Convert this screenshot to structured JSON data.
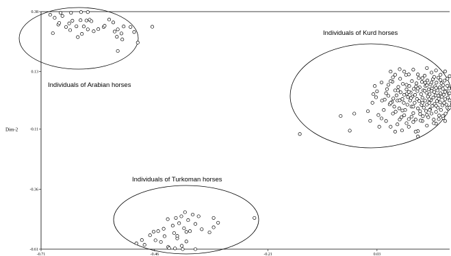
{
  "chart_data": {
    "type": "scatter",
    "title": "",
    "xlabel": "",
    "ylabel": "Dim-2",
    "xlim": [
      -0.71,
      0.19
    ],
    "ylim": [
      -0.61,
      0.38
    ],
    "x_ticks": [
      "-0.71",
      "-0.46",
      "-0.21",
      "0.03"
    ],
    "y_ticks": [
      "0.38",
      "0.13",
      "-0.11",
      "-0.36",
      "-0.61"
    ],
    "point_color": "#000000",
    "grid": false,
    "groups": [
      {
        "label": "Individuals of Arabian horses",
        "points": [
          [
            -0.69,
            0.367
          ],
          [
            -0.68,
            0.354
          ],
          [
            -0.672,
            0.326
          ],
          [
            -0.67,
            0.333
          ],
          [
            -0.667,
            0.375
          ],
          [
            -0.663,
            0.362
          ],
          [
            -0.655,
            0.316
          ],
          [
            -0.648,
            0.331
          ],
          [
            -0.646,
            0.303
          ],
          [
            -0.641,
            0.342
          ],
          [
            -0.632,
            0.319
          ],
          [
            -0.629,
            0.274
          ],
          [
            -0.623,
            0.344
          ],
          [
            -0.62,
            0.287
          ],
          [
            -0.616,
            0.318
          ],
          [
            -0.61,
            0.343
          ],
          [
            -0.607,
            0.306
          ],
          [
            -0.603,
            0.346
          ],
          [
            -0.599,
            0.34
          ],
          [
            -0.584,
            0.307
          ],
          [
            -0.572,
            0.316
          ],
          [
            -0.57,
            0.321
          ],
          [
            -0.56,
            0.347
          ],
          [
            -0.551,
            0.335
          ],
          [
            -0.548,
            0.297
          ],
          [
            -0.543,
            0.275
          ],
          [
            -0.541,
            0.306
          ],
          [
            -0.533,
            0.289
          ],
          [
            -0.531,
            0.264
          ],
          [
            -0.513,
            0.316
          ],
          [
            -0.505,
            0.295
          ],
          [
            -0.497,
            0.251
          ],
          [
            -0.465,
            0.317
          ],
          [
            -0.644,
            0.375
          ],
          [
            -0.622,
            0.378
          ],
          [
            -0.607,
            0.378
          ],
          [
            -0.594,
            0.298
          ],
          [
            -0.541,
            0.216
          ],
          [
            -0.528,
            0.318
          ],
          [
            -0.684,
            0.29
          ]
        ]
      },
      {
        "label": "Individuals of Kurd horses",
        "points": [
          [
            -0.03,
            -0.116
          ],
          [
            -0.02,
            -0.045
          ],
          [
            0.015,
            -0.075
          ],
          [
            0.02,
            0.0
          ],
          [
            0.022,
            0.036
          ],
          [
            0.028,
            0.023
          ],
          [
            0.033,
            -0.051
          ],
          [
            0.041,
            0.009
          ],
          [
            0.047,
            0.013
          ],
          [
            0.05,
            -0.076
          ],
          [
            0.052,
            0.057
          ],
          [
            0.055,
            0.029
          ],
          [
            0.058,
            -0.007
          ],
          [
            0.063,
            0.003
          ],
          [
            0.064,
            0.088
          ],
          [
            0.066,
            0.018
          ],
          [
            0.068,
            -0.016
          ],
          [
            0.07,
            0.052
          ],
          [
            0.071,
            -0.037
          ],
          [
            0.073,
            0.031
          ],
          [
            0.075,
            0.009
          ],
          [
            0.077,
            0.066
          ],
          [
            0.079,
            -0.023
          ],
          [
            0.081,
            0.1
          ],
          [
            0.082,
            0.044
          ],
          [
            0.084,
            -0.06
          ],
          [
            0.086,
            0.016
          ],
          [
            0.087,
            0.079
          ],
          [
            0.089,
            0.0
          ],
          [
            0.09,
            0.033
          ],
          [
            0.092,
            -0.03
          ],
          [
            0.094,
            0.116
          ],
          [
            0.095,
            0.056
          ],
          [
            0.097,
            -0.008
          ],
          [
            0.098,
            0.024
          ],
          [
            0.1,
            -0.068
          ],
          [
            0.101,
            0.07
          ],
          [
            0.103,
            0.009
          ],
          [
            0.104,
            0.043
          ],
          [
            0.106,
            -0.016
          ],
          [
            0.107,
            0.09
          ],
          [
            0.108,
            0.026
          ],
          [
            0.11,
            -0.043
          ],
          [
            0.111,
            0.058
          ],
          [
            0.113,
            0.0
          ],
          [
            0.114,
            0.033
          ],
          [
            0.115,
            -0.07
          ],
          [
            0.117,
            0.081
          ],
          [
            0.118,
            0.016
          ],
          [
            0.119,
            0.049
          ],
          [
            0.12,
            -0.023
          ],
          [
            0.122,
            0.103
          ],
          [
            0.123,
            0.007
          ],
          [
            0.124,
            0.065
          ],
          [
            0.125,
            -0.047
          ],
          [
            0.127,
            0.036
          ],
          [
            0.128,
            -0.009
          ],
          [
            0.129,
            0.087
          ],
          [
            0.13,
            0.021
          ],
          [
            0.131,
            -0.056
          ],
          [
            0.132,
            0.052
          ],
          [
            0.133,
            -0.02
          ],
          [
            0.135,
            0.113
          ],
          [
            0.136,
            0.009
          ],
          [
            0.137,
            0.07
          ],
          [
            0.138,
            -0.034
          ],
          [
            0.139,
            0.042
          ],
          [
            0.14,
            -0.008
          ],
          [
            0.141,
            0.093
          ],
          [
            0.142,
            0.026
          ],
          [
            0.143,
            -0.06
          ],
          [
            0.144,
            0.056
          ],
          [
            0.145,
            0.0
          ],
          [
            0.146,
            0.035
          ],
          [
            0.147,
            -0.027
          ],
          [
            0.148,
            0.077
          ],
          [
            0.149,
            0.011
          ],
          [
            0.15,
            -0.045
          ],
          [
            0.151,
            0.06
          ],
          [
            0.152,
            -0.013
          ],
          [
            0.153,
            0.098
          ],
          [
            0.154,
            0.022
          ],
          [
            0.155,
            -0.07
          ],
          [
            0.156,
            0.045
          ],
          [
            0.157,
            -0.005
          ],
          [
            0.158,
            0.069
          ],
          [
            0.159,
            0.031
          ],
          [
            0.16,
            -0.038
          ],
          [
            0.161,
            0.084
          ],
          [
            0.162,
            0.007
          ],
          [
            0.163,
            0.052
          ],
          [
            0.164,
            -0.02
          ],
          [
            0.165,
            0.105
          ],
          [
            0.166,
            0.017
          ],
          [
            0.167,
            -0.053
          ],
          [
            0.168,
            0.064
          ],
          [
            0.169,
            0.002
          ],
          [
            0.17,
            0.04
          ],
          [
            0.171,
            -0.03
          ],
          [
            0.172,
            0.081
          ],
          [
            0.173,
            0.025
          ],
          [
            0.174,
            -0.011
          ],
          [
            0.175,
            0.058
          ],
          [
            0.176,
            -0.063
          ],
          [
            0.177,
            0.034
          ],
          [
            0.178,
            0.0
          ],
          [
            0.179,
            0.092
          ],
          [
            0.18,
            0.015
          ],
          [
            0.181,
            -0.045
          ],
          [
            0.182,
            0.049
          ],
          [
            0.183,
            -0.008
          ],
          [
            0.185,
            0.071
          ],
          [
            0.186,
            0.022
          ],
          [
            0.187,
            -0.026
          ],
          [
            0.188,
            0.038
          ],
          [
            0.189,
            0.06
          ],
          [
            0.19,
            0.01
          ],
          [
            0.06,
            0.09
          ],
          [
            0.07,
            0.117
          ],
          [
            0.09,
            0.13
          ],
          [
            0.11,
            0.138
          ],
          [
            0.12,
            0.118
          ],
          [
            0.14,
            0.145
          ],
          [
            0.15,
            0.126
          ],
          [
            0.16,
            0.135
          ],
          [
            0.17,
            0.117
          ],
          [
            0.18,
            0.131
          ],
          [
            0.19,
            0.111
          ],
          [
            0.1,
            -0.1
          ],
          [
            0.12,
            -0.118
          ],
          [
            0.14,
            -0.095
          ],
          [
            0.16,
            -0.087
          ],
          [
            0.18,
            -0.076
          ],
          [
            0.085,
            -0.115
          ],
          [
            0.11,
            -0.08
          ],
          [
            0.035,
            -0.1
          ],
          [
            0.025,
            0.07
          ],
          [
            0.04,
            0.085
          ],
          [
            0.065,
            0.106
          ],
          [
            0.03,
            0.048
          ],
          [
            0.045,
            -0.03
          ],
          [
            0.06,
            -0.1
          ],
          [
            0.075,
            -0.09
          ],
          [
            0.095,
            -0.085
          ],
          [
            0.115,
            -0.12
          ],
          [
            0.13,
            -0.076
          ],
          [
            0.155,
            -0.085
          ],
          [
            0.175,
            -0.055
          ],
          [
            0.12,
            -0.14
          ],
          [
            0.185,
            0.1
          ],
          [
            0.05,
            0.04
          ],
          [
            0.065,
            -0.045
          ],
          [
            0.08,
            0.01
          ],
          [
            0.105,
            0.02
          ],
          [
            0.125,
            -0.035
          ],
          [
            0.145,
            0.015
          ],
          [
            0.165,
            0.03
          ],
          [
            0.185,
            -0.02
          ],
          [
            0.095,
            0.075
          ],
          [
            0.135,
            0.05
          ],
          [
            -0.14,
            -0.13
          ],
          [
            -0.05,
            -0.055
          ],
          [
            0.06,
            0.13
          ],
          [
            0.08,
            0.14
          ],
          [
            0.1,
            0.118
          ],
          [
            0.13,
            0.103
          ],
          [
            0.15,
            0.085
          ],
          [
            0.17,
            0.095
          ],
          [
            0.01,
            -0.035
          ],
          [
            0.04,
            -0.065
          ],
          [
            0.07,
            -0.12
          ],
          [
            0.09,
            -0.052
          ],
          [
            0.11,
            -0.016
          ],
          [
            0.14,
            -0.05
          ],
          [
            0.16,
            -0.012
          ],
          [
            0.18,
            0.046
          ],
          [
            0.076,
            0.052
          ],
          [
            0.096,
            0.038
          ],
          [
            0.116,
            0.068
          ],
          [
            0.136,
            0.084
          ],
          [
            0.156,
            0.108
          ],
          [
            0.176,
            0.074
          ],
          [
            0.086,
            -0.032
          ],
          [
            0.106,
            -0.058
          ],
          [
            0.126,
            -0.074
          ],
          [
            0.146,
            -0.03
          ],
          [
            0.166,
            -0.068
          ],
          [
            0.1,
            0.045
          ],
          [
            0.12,
            0.06
          ],
          [
            0.14,
            0.073
          ],
          [
            0.16,
            0.062
          ],
          [
            0.055,
            0.075
          ],
          [
            0.19,
            0.04
          ],
          [
            0.19,
            -0.02
          ],
          [
            0.06,
            0.0
          ],
          [
            0.08,
            -0.07
          ],
          [
            0.13,
            0.0
          ],
          [
            0.15,
            0.05
          ]
        ]
      },
      {
        "label": "Individuals of Turkoman horses",
        "points": [
          [
            -0.5,
            -0.586
          ],
          [
            -0.488,
            -0.572
          ],
          [
            -0.482,
            -0.592
          ],
          [
            -0.47,
            -0.552
          ],
          [
            -0.462,
            -0.537
          ],
          [
            -0.458,
            -0.573
          ],
          [
            -0.452,
            -0.535
          ],
          [
            -0.446,
            -0.58
          ],
          [
            -0.44,
            -0.525
          ],
          [
            -0.438,
            -0.556
          ],
          [
            -0.431,
            -0.485
          ],
          [
            -0.43,
            -0.601
          ],
          [
            -0.428,
            -0.606
          ],
          [
            -0.42,
            -0.512
          ],
          [
            -0.417,
            -0.543
          ],
          [
            -0.415,
            -0.607
          ],
          [
            -0.413,
            -0.48
          ],
          [
            -0.41,
            -0.565
          ],
          [
            -0.406,
            -0.502
          ],
          [
            -0.401,
            -0.473
          ],
          [
            -0.398,
            -0.61
          ],
          [
            -0.395,
            -0.523
          ],
          [
            -0.393,
            -0.456
          ],
          [
            -0.39,
            -0.578
          ],
          [
            -0.386,
            -0.489
          ],
          [
            -0.382,
            -0.535
          ],
          [
            -0.376,
            -0.466
          ],
          [
            -0.37,
            -0.505
          ],
          [
            -0.363,
            -0.473
          ],
          [
            -0.356,
            -0.527
          ],
          [
            -0.339,
            -0.54
          ],
          [
            -0.33,
            -0.48
          ],
          [
            -0.33,
            -0.519
          ],
          [
            -0.32,
            -0.5
          ],
          [
            -0.24,
            -0.48
          ],
          [
            -0.4,
            -0.596
          ],
          [
            -0.41,
            -0.555
          ],
          [
            -0.39,
            -0.538
          ],
          [
            -0.37,
            -0.61
          ]
        ]
      }
    ]
  }
}
